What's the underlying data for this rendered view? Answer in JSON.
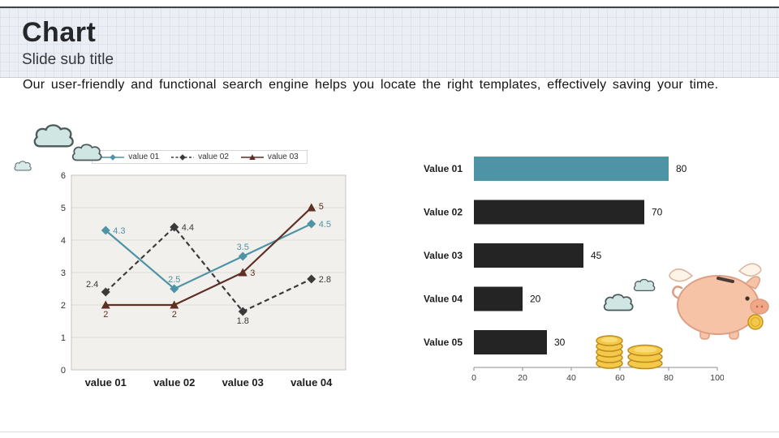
{
  "slide": {
    "title": "Chart",
    "subtitle": "Slide sub title",
    "description": "Our user-friendly and functional search engine helps you locate the right templates, effectively saving your time."
  },
  "decorations": [
    "cloud-icon",
    "piggy-bank-icon",
    "coin-stack-icon"
  ],
  "chart_data": [
    {
      "type": "line",
      "title": "",
      "categories": [
        "value 01",
        "value 02",
        "value 03",
        "value 04"
      ],
      "series": [
        {
          "name": "value 01",
          "values": [
            4.3,
            2.5,
            3.5,
            4.5
          ],
          "color": "#4e93a6",
          "marker": "diamond",
          "dash": false
        },
        {
          "name": "value 02",
          "values": [
            2.4,
            4.4,
            1.8,
            2.8
          ],
          "color": "#3a3a3a",
          "marker": "diamond",
          "dash": true
        },
        {
          "name": "value 03",
          "values": [
            2,
            2,
            3,
            5
          ],
          "color": "#5e2f23",
          "marker": "triangle",
          "dash": false
        }
      ],
      "ylim": [
        0,
        6
      ],
      "yticks": [
        0,
        1,
        2,
        3,
        4,
        5,
        6
      ],
      "legend_position": "top",
      "grid": true,
      "plot_background": "#f2f0ec"
    },
    {
      "type": "bar",
      "orientation": "horizontal",
      "categories": [
        "Value 01",
        "Value 02",
        "Value 03",
        "Value 04",
        "Value 05"
      ],
      "values": [
        80,
        70,
        45,
        20,
        30
      ],
      "bar_colors": [
        "#4e93a6",
        "#242424",
        "#242424",
        "#242424",
        "#242424"
      ],
      "xlim": [
        0,
        100
      ],
      "xticks": [
        0,
        20,
        40,
        60,
        80,
        100
      ]
    }
  ]
}
